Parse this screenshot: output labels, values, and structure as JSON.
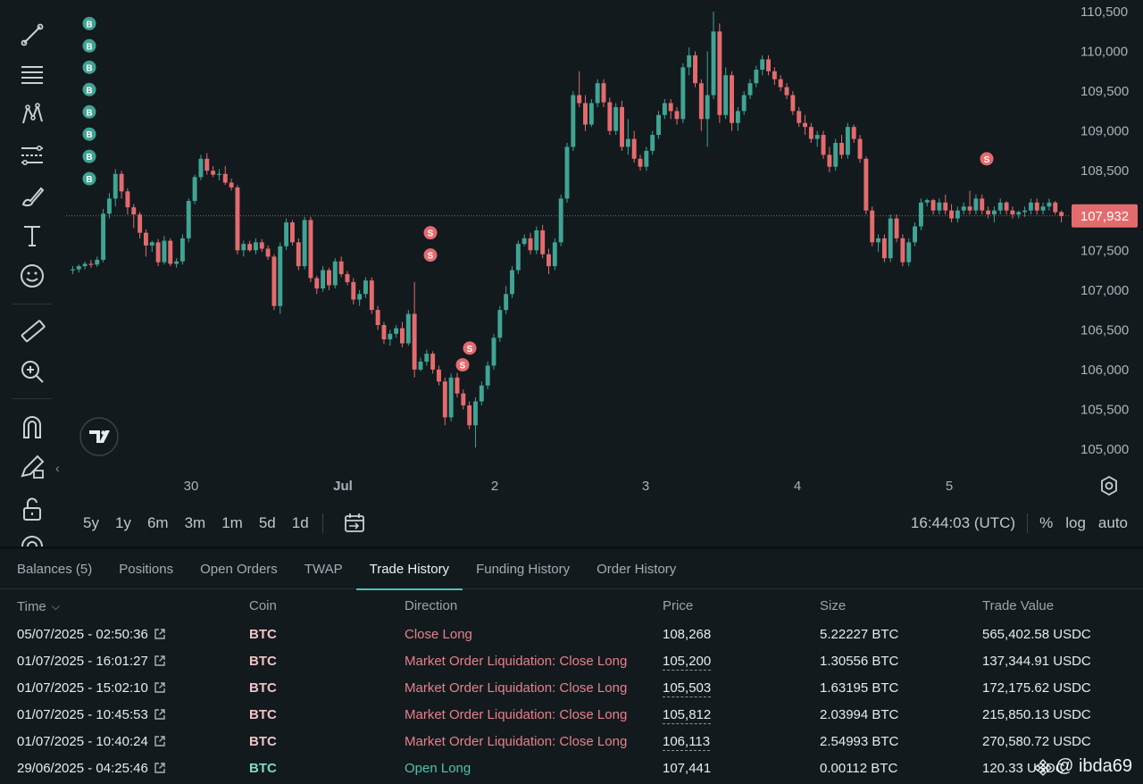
{
  "chart": {
    "current_price_label": "107,932",
    "time_ticks": [
      "30",
      "Jul",
      "2",
      "3",
      "4",
      "5"
    ],
    "price_ticks": [
      "110,500",
      "110,000",
      "109,500",
      "109,000",
      "108,500",
      "108,000",
      "107,500",
      "107,000",
      "106,500",
      "106,000",
      "105,500",
      "105,000"
    ],
    "buy_marker": "B",
    "sell_marker": "S"
  },
  "chart_data": {
    "type": "candlestick",
    "instrument": "BTC",
    "current_price": 107932,
    "ylim": [
      104800,
      110600
    ],
    "x_ticks": [
      "30",
      "Jul",
      "2",
      "3",
      "4",
      "5"
    ],
    "y_ticks": [
      110500,
      110000,
      109500,
      109000,
      108500,
      108000,
      107500,
      107000,
      106500,
      106000,
      105500,
      105000
    ],
    "colors": {
      "up": "#3fa494",
      "down": "#e46b6d",
      "buy_marker": "#3fa494",
      "sell_marker": "#e46b6d"
    },
    "candles": [
      [
        107250,
        107300,
        107200,
        107260
      ],
      [
        107260,
        107320,
        107220,
        107300
      ],
      [
        107300,
        107360,
        107260,
        107330
      ],
      [
        107330,
        107380,
        107280,
        107320
      ],
      [
        107320,
        107420,
        107290,
        107380
      ],
      [
        107380,
        108020,
        107350,
        107960
      ],
      [
        107960,
        108220,
        107900,
        108150
      ],
      [
        108150,
        108520,
        108050,
        108460
      ],
      [
        108460,
        108500,
        108150,
        108240
      ],
      [
        108240,
        108280,
        107950,
        108040
      ],
      [
        108040,
        108080,
        107780,
        107950
      ],
      [
        107950,
        107980,
        107650,
        107720
      ],
      [
        107720,
        107760,
        107420,
        107560
      ],
      [
        107560,
        107620,
        107480,
        107600
      ],
      [
        107600,
        107640,
        107300,
        107350
      ],
      [
        107350,
        107680,
        107320,
        107620
      ],
      [
        107620,
        107650,
        107300,
        107330
      ],
      [
        107330,
        107400,
        107280,
        107360
      ],
      [
        107360,
        107700,
        107320,
        107650
      ],
      [
        107650,
        108150,
        107600,
        108120
      ],
      [
        108120,
        108450,
        108080,
        108420
      ],
      [
        108420,
        108700,
        108380,
        108650
      ],
      [
        108650,
        108720,
        108450,
        108500
      ],
      [
        108500,
        108560,
        108420,
        108450
      ],
      [
        108450,
        108520,
        108380,
        108460
      ],
      [
        108460,
        108560,
        108320,
        108350
      ],
      [
        108350,
        108400,
        108250,
        108290
      ],
      [
        108290,
        108320,
        107450,
        107500
      ],
      [
        107500,
        107620,
        107420,
        107580
      ],
      [
        107580,
        107620,
        107480,
        107500
      ],
      [
        107500,
        107650,
        107450,
        107600
      ],
      [
        107600,
        107640,
        107480,
        107520
      ],
      [
        107520,
        107560,
        107380,
        107420
      ],
      [
        107420,
        107450,
        106750,
        106800
      ],
      [
        106800,
        107600,
        106700,
        107550
      ],
      [
        107550,
        107900,
        107500,
        107850
      ],
      [
        107850,
        107880,
        107560,
        107600
      ],
      [
        107600,
        107650,
        107250,
        107300
      ],
      [
        107300,
        107920,
        107260,
        107880
      ],
      [
        107880,
        107920,
        107100,
        107150
      ],
      [
        107150,
        107180,
        106950,
        107020
      ],
      [
        107020,
        107300,
        106980,
        107250
      ],
      [
        107250,
        107280,
        107000,
        107060
      ],
      [
        107060,
        107400,
        107020,
        107360
      ],
      [
        107360,
        107420,
        107160,
        107200
      ],
      [
        107200,
        107240,
        107060,
        107100
      ],
      [
        107100,
        107150,
        106820,
        106880
      ],
      [
        106880,
        107000,
        106800,
        106950
      ],
      [
        106950,
        107160,
        106900,
        107120
      ],
      [
        107120,
        107160,
        106700,
        106750
      ],
      [
        106750,
        106800,
        106500,
        106560
      ],
      [
        106560,
        106600,
        106320,
        106380
      ],
      [
        106380,
        106500,
        106300,
        106450
      ],
      [
        106450,
        106560,
        106400,
        106520
      ],
      [
        106520,
        106600,
        106280,
        106330
      ],
      [
        106330,
        106750,
        106300,
        106700
      ],
      [
        106700,
        107100,
        105900,
        106000
      ],
      [
        106000,
        106150,
        105980,
        106100
      ],
      [
        106100,
        106250,
        106050,
        106200
      ],
      [
        106200,
        106230,
        105950,
        106000
      ],
      [
        106000,
        106050,
        105800,
        105850
      ],
      [
        105850,
        105900,
        105300,
        105400
      ],
      [
        105400,
        105950,
        105350,
        105900
      ],
      [
        105900,
        105960,
        105650,
        105700
      ],
      [
        105700,
        105750,
        105500,
        105550
      ],
      [
        105550,
        105600,
        105250,
        105300
      ],
      [
        105300,
        105650,
        105020,
        105600
      ],
      [
        105600,
        105850,
        105550,
        105800
      ],
      [
        105800,
        106100,
        105750,
        106050
      ],
      [
        106050,
        106450,
        106000,
        106400
      ],
      [
        106400,
        106800,
        106350,
        106750
      ],
      [
        106750,
        107050,
        106700,
        106950
      ],
      [
        106950,
        107300,
        106900,
        107250
      ],
      [
        107250,
        107620,
        107200,
        107580
      ],
      [
        107580,
        107700,
        107550,
        107650
      ],
      [
        107650,
        107720,
        107450,
        107500
      ],
      [
        107500,
        107800,
        107450,
        107750
      ],
      [
        107750,
        107820,
        107400,
        107450
      ],
      [
        107450,
        107520,
        107200,
        107300
      ],
      [
        107300,
        107650,
        107250,
        107600
      ],
      [
        107600,
        108200,
        107550,
        108150
      ],
      [
        108150,
        108850,
        108100,
        108800
      ],
      [
        108800,
        109500,
        108750,
        109450
      ],
      [
        109450,
        109750,
        109300,
        109350
      ],
      [
        109350,
        109450,
        109000,
        109080
      ],
      [
        109080,
        109400,
        109050,
        109350
      ],
      [
        109350,
        109650,
        109300,
        109600
      ],
      [
        109600,
        109650,
        109300,
        109360
      ],
      [
        109360,
        109420,
        108950,
        109000
      ],
      [
        109000,
        109350,
        108950,
        109300
      ],
      [
        109300,
        109380,
        108750,
        108800
      ],
      [
        108800,
        109150,
        108700,
        108900
      ],
      [
        108900,
        109000,
        108600,
        108650
      ],
      [
        108650,
        108700,
        108500,
        108550
      ],
      [
        108550,
        108800,
        108500,
        108750
      ],
      [
        108750,
        109000,
        108700,
        108950
      ],
      [
        108950,
        109250,
        108900,
        109200
      ],
      [
        109200,
        109400,
        109150,
        109350
      ],
      [
        109350,
        109400,
        109150,
        109250
      ],
      [
        109250,
        109300,
        109080,
        109150
      ],
      [
        109150,
        109850,
        109100,
        109800
      ],
      [
        109800,
        110050,
        109700,
        109950
      ],
      [
        109950,
        110000,
        109550,
        109600
      ],
      [
        109600,
        109650,
        109000,
        109150
      ],
      [
        109150,
        110000,
        108800,
        109450
      ],
      [
        109450,
        110500,
        109400,
        110250
      ],
      [
        110250,
        110350,
        109100,
        109200
      ],
      [
        109200,
        109800,
        109150,
        109700
      ],
      [
        109700,
        109750,
        109000,
        109100
      ],
      [
        109100,
        109300,
        109000,
        109250
      ],
      [
        109250,
        109500,
        109200,
        109450
      ],
      [
        109450,
        109650,
        109400,
        109600
      ],
      [
        109600,
        109820,
        109550,
        109770
      ],
      [
        109770,
        109950,
        109700,
        109900
      ],
      [
        109900,
        109950,
        109700,
        109750
      ],
      [
        109750,
        109800,
        109580,
        109650
      ],
      [
        109650,
        109700,
        109500,
        109550
      ],
      [
        109550,
        109600,
        109400,
        109450
      ],
      [
        109450,
        109500,
        109200,
        109250
      ],
      [
        109250,
        109300,
        109050,
        109100
      ],
      [
        109100,
        109200,
        108950,
        109050
      ],
      [
        109050,
        109100,
        108850,
        108900
      ],
      [
        108900,
        109000,
        108800,
        108950
      ],
      [
        108950,
        109000,
        108650,
        108700
      ],
      [
        108700,
        108800,
        108480,
        108550
      ],
      [
        108550,
        108900,
        108500,
        108850
      ],
      [
        108850,
        108950,
        108650,
        108700
      ],
      [
        108700,
        109100,
        108650,
        109050
      ],
      [
        109050,
        109080,
        108850,
        108900
      ],
      [
        108900,
        108950,
        108600,
        108650
      ],
      [
        108650,
        108680,
        107950,
        108000
      ],
      [
        108000,
        108050,
        107550,
        107600
      ],
      [
        107600,
        107700,
        107480,
        107650
      ],
      [
        107650,
        107700,
        107350,
        107400
      ],
      [
        107400,
        107950,
        107350,
        107900
      ],
      [
        107900,
        107950,
        107600,
        107650
      ],
      [
        107650,
        107700,
        107300,
        107350
      ],
      [
        107350,
        107650,
        107300,
        107600
      ],
      [
        107600,
        107850,
        107550,
        107800
      ],
      [
        107800,
        108150,
        107750,
        108100
      ],
      [
        108100,
        108150,
        108050,
        108130
      ],
      [
        108130,
        108150,
        107950,
        108000
      ],
      [
        108000,
        108150,
        107950,
        108100
      ],
      [
        108100,
        108200,
        107950,
        108000
      ],
      [
        108000,
        108080,
        107850,
        107900
      ],
      [
        107900,
        108050,
        107850,
        108000
      ],
      [
        108000,
        108100,
        107950,
        108050
      ],
      [
        108050,
        108250,
        107950,
        108000
      ],
      [
        108000,
        108200,
        107950,
        108150
      ],
      [
        108150,
        108200,
        107950,
        108000
      ],
      [
        108000,
        108050,
        107900,
        107950
      ],
      [
        107950,
        108050,
        107850,
        108000
      ],
      [
        108000,
        108150,
        107950,
        108100
      ],
      [
        108100,
        108120,
        107950,
        108000
      ],
      [
        108000,
        108050,
        107900,
        107950
      ],
      [
        107950,
        108000,
        107900,
        107980
      ],
      [
        107980,
        108050,
        107920,
        108000
      ],
      [
        108000,
        108150,
        107950,
        108100
      ],
      [
        108100,
        108150,
        107950,
        108000
      ],
      [
        108000,
        108100,
        107950,
        108050
      ],
      [
        108050,
        108150,
        108000,
        108100
      ],
      [
        108100,
        108120,
        107950,
        107980
      ],
      [
        107980,
        108000,
        107850,
        107932
      ]
    ],
    "trade_markers": [
      {
        "side": "B",
        "price": 110350
      },
      {
        "side": "B",
        "price": 110070
      },
      {
        "side": "B",
        "price": 109800
      },
      {
        "side": "B",
        "price": 109520
      },
      {
        "side": "B",
        "price": 109240
      },
      {
        "side": "B",
        "price": 108960
      },
      {
        "side": "B",
        "price": 108680
      },
      {
        "side": "B",
        "price": 108400
      },
      {
        "side": "S",
        "price": 107720
      },
      {
        "side": "S",
        "price": 107440
      },
      {
        "side": "S",
        "price": 106270
      },
      {
        "side": "S",
        "price": 106060
      },
      {
        "side": "S",
        "price": 108650
      }
    ]
  },
  "toolbar": {
    "icons": [
      "trend-line-icon",
      "horizontal-lines-icon",
      "pattern-icon",
      "fib-icon",
      "brush-icon",
      "text-icon",
      "emoji-icon",
      "ruler-icon",
      "zoom-in-icon",
      "magnet-icon",
      "lock-pencil-icon",
      "unlock-icon",
      "eye-icon"
    ]
  },
  "range_buttons": [
    "5y",
    "1y",
    "6m",
    "3m",
    "1m",
    "5d",
    "1d"
  ],
  "controls": {
    "clock": "16:44:03 (UTC)",
    "percent": "%",
    "log": "log",
    "auto": "auto"
  },
  "tabs": [
    "Balances (5)",
    "Positions",
    "Open Orders",
    "TWAP",
    "Trade History",
    "Funding History",
    "Order History"
  ],
  "active_tab": "Trade History",
  "table": {
    "headers": {
      "time": "Time",
      "coin": "Coin",
      "direction": "Direction",
      "price": "Price",
      "size": "Size",
      "value": "Trade Value"
    },
    "rows": [
      {
        "time": "05/07/2025 - 02:50:36",
        "coin": "BTC",
        "direction": "Close Long",
        "price": "108,268",
        "size": "5.22227 BTC",
        "value": "565,402.58 USDC",
        "side": "sell",
        "dashed": false
      },
      {
        "time": "01/07/2025 - 16:01:27",
        "coin": "BTC",
        "direction": "Market Order Liquidation: Close Long",
        "price": "105,200",
        "size": "1.30556 BTC",
        "value": "137,344.91 USDC",
        "side": "sell",
        "dashed": true
      },
      {
        "time": "01/07/2025 - 15:02:10",
        "coin": "BTC",
        "direction": "Market Order Liquidation: Close Long",
        "price": "105,503",
        "size": "1.63195 BTC",
        "value": "172,175.62 USDC",
        "side": "sell",
        "dashed": true
      },
      {
        "time": "01/07/2025 - 10:45:53",
        "coin": "BTC",
        "direction": "Market Order Liquidation: Close Long",
        "price": "105,812",
        "size": "2.03994 BTC",
        "value": "215,850.13 USDC",
        "side": "sell",
        "dashed": true
      },
      {
        "time": "01/07/2025 - 10:40:24",
        "coin": "BTC",
        "direction": "Market Order Liquidation: Close Long",
        "price": "106,113",
        "size": "2.54993 BTC",
        "value": "270,580.72 USDC",
        "side": "sell",
        "dashed": true
      },
      {
        "time": "29/06/2025 - 04:25:46",
        "coin": "BTC",
        "direction": "Open Long",
        "price": "107,441",
        "size": "0.00112 BTC",
        "value": "120.33 USDC",
        "side": "buy",
        "dashed": false
      }
    ]
  },
  "colors": {
    "buy": "#4ec3ad",
    "sell": "#e88088",
    "coin_sell": "#f2c3c5",
    "coin_buy": "#7fd9c6",
    "accent": "#4ec3ad",
    "price_tag": "#e46b6d"
  },
  "watermark": "@ ibda69"
}
